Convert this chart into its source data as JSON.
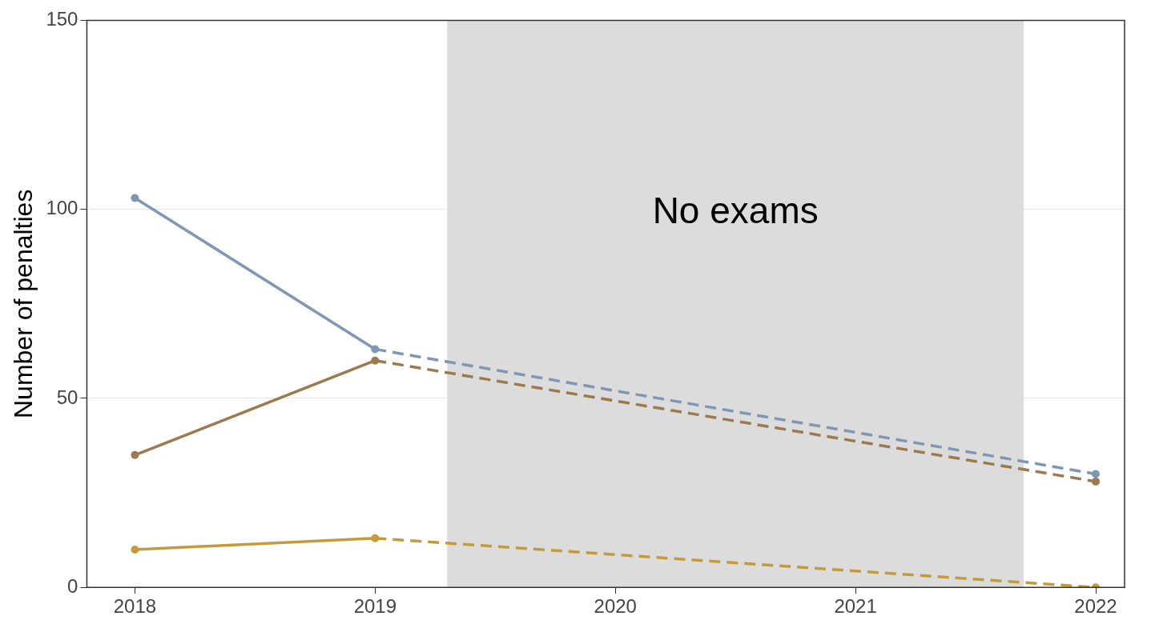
{
  "chart_data": {
    "type": "line",
    "ylabel": "Number of penalties",
    "xlim": [
      2017.8,
      2022.12
    ],
    "xticks": [
      2018,
      2019,
      2020,
      2021,
      2022
    ],
    "ylim": [
      0,
      150
    ],
    "yticks": [
      0,
      50,
      100,
      150
    ],
    "series": [
      {
        "color": "#7f97b2",
        "x": [
          2018,
          2019,
          2022
        ],
        "values": [
          103,
          63,
          30
        ]
      },
      {
        "color": "#9c7a4f",
        "x": [
          2018,
          2019,
          2022
        ],
        "values": [
          35,
          60,
          28
        ]
      },
      {
        "color": "#c49a3c",
        "x": [
          2018,
          2019,
          2022
        ],
        "values": [
          10,
          13,
          0
        ]
      }
    ],
    "bands": [
      {
        "axis": "x",
        "from": 2019.3,
        "to": 2021.7,
        "label": "No exams",
        "color": "#dcdcdc"
      }
    ],
    "marker": "circle",
    "grid": "y",
    "legend": false
  }
}
